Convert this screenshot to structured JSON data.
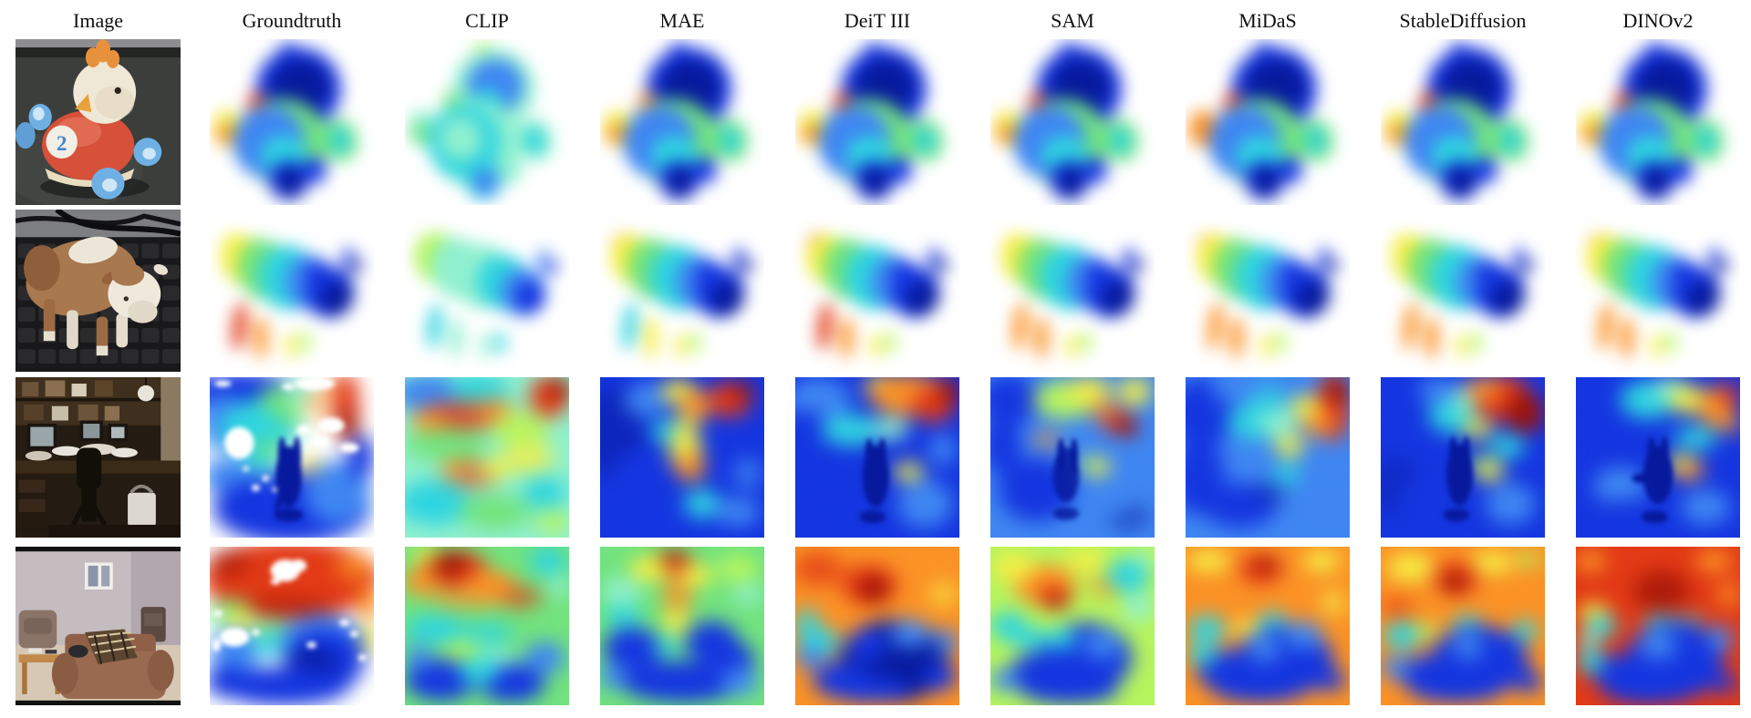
{
  "figure": {
    "columns": [
      "Image",
      "Groundtruth",
      "CLIP",
      "MAE",
      "DeiT III",
      "SAM",
      "MiDaS",
      "StableDiffusion",
      "DINOv2"
    ],
    "rows": [
      {
        "id": "toy-bird",
        "label": "toy bird on red wheeled car",
        "visible_text": "2"
      },
      {
        "id": "toy-cow",
        "label": "toy cow figurine on keyboard"
      },
      {
        "id": "office",
        "label": "cluttered home office with desk chair"
      },
      {
        "id": "living-room",
        "label": "living room with sofa and armchairs"
      }
    ],
    "colormap": {
      "near": "#071a9e",
      "blue": "#1536e0",
      "light_blue": "#3f86f2",
      "cyan": "#2fd4e0",
      "green": "#72e37e",
      "yellow": "#f5ee45",
      "orange": "#fb9226",
      "red": "#e23a16",
      "far": "#9e1206"
    },
    "background": "#ffffff"
  }
}
